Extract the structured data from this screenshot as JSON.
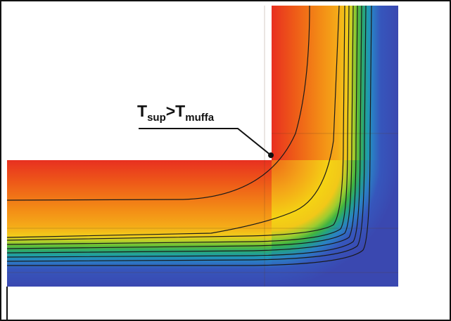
{
  "annotation": {
    "t1": "T",
    "sub1": "sup",
    "op": ">",
    "t2": "T",
    "sub2": "muffa"
  },
  "colors": {
    "inner_hot": "#e8301e",
    "orange": "#f07a14",
    "amber": "#f5a818",
    "yellow": "#f4d812",
    "green": "#46b436",
    "teal": "#1ea0a8",
    "blue_outer": "#3a50b8",
    "isoline": "#1a1a1a",
    "frame": "#111111"
  }
}
